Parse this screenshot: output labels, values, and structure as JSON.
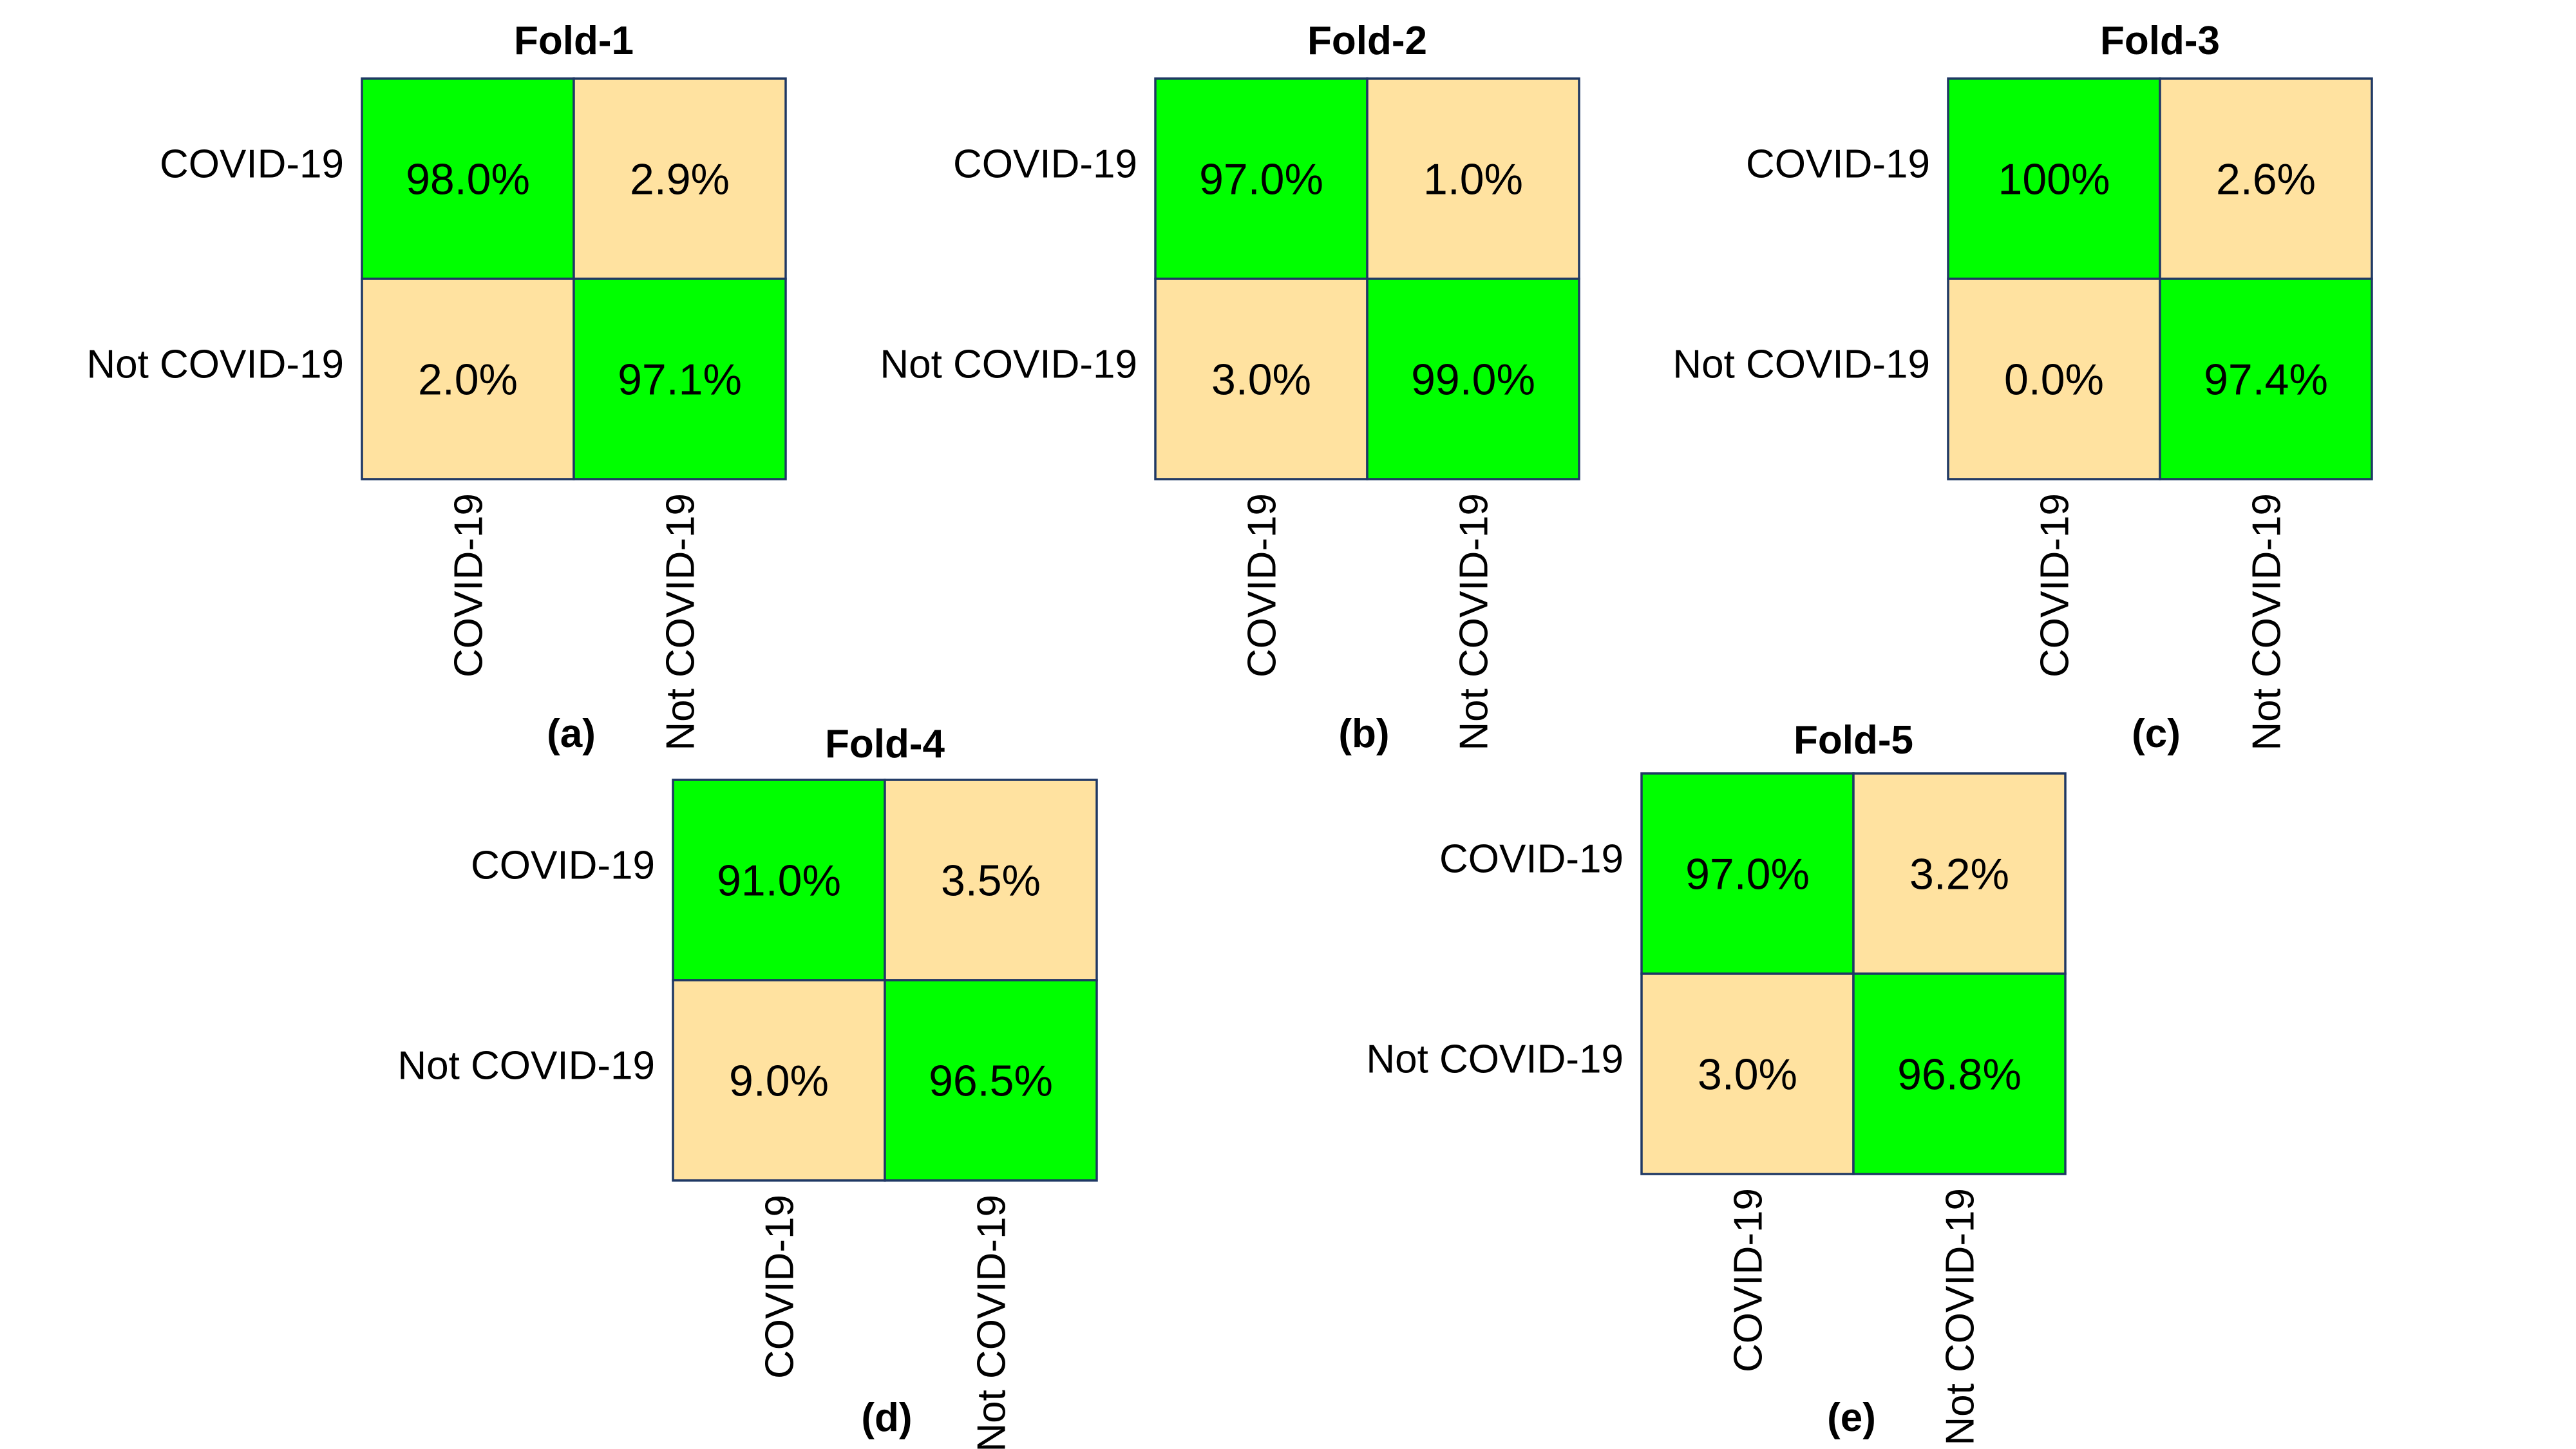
{
  "colors": {
    "diagonal": "#00ff00",
    "off_diagonal": "#ffe2a0",
    "border": "#1f3864"
  },
  "chart_data": [
    {
      "type": "heatmap",
      "panel": "(a)",
      "title": "Fold-1",
      "row_labels": [
        "COVID-19",
        "Not COVID-19"
      ],
      "col_labels": [
        "COVID-19",
        "Not COVID-19"
      ],
      "values": [
        [
          98.0,
          2.9
        ],
        [
          2.0,
          97.1
        ]
      ],
      "labels": [
        [
          "98.0%",
          "2.9%"
        ],
        [
          "2.0%",
          "97.1%"
        ]
      ]
    },
    {
      "type": "heatmap",
      "panel": "(b)",
      "title": "Fold-2",
      "row_labels": [
        "COVID-19",
        "Not COVID-19"
      ],
      "col_labels": [
        "COVID-19",
        "Not COVID-19"
      ],
      "values": [
        [
          97.0,
          1.0
        ],
        [
          3.0,
          99.0
        ]
      ],
      "labels": [
        [
          "97.0%",
          "1.0%"
        ],
        [
          "3.0%",
          "99.0%"
        ]
      ]
    },
    {
      "type": "heatmap",
      "panel": "(c)",
      "title": "Fold-3",
      "row_labels": [
        "COVID-19",
        "Not COVID-19"
      ],
      "col_labels": [
        "COVID-19",
        "Not COVID-19"
      ],
      "values": [
        [
          100,
          2.6
        ],
        [
          0.0,
          97.4
        ]
      ],
      "labels": [
        [
          "100%",
          "2.6%"
        ],
        [
          "0.0%",
          "97.4%"
        ]
      ]
    },
    {
      "type": "heatmap",
      "panel": "(d)",
      "title": "Fold-4",
      "row_labels": [
        "COVID-19",
        "Not COVID-19"
      ],
      "col_labels": [
        "COVID-19",
        "Not COVID-19"
      ],
      "values": [
        [
          91.0,
          3.5
        ],
        [
          9.0,
          96.5
        ]
      ],
      "labels": [
        [
          "91.0%",
          "3.5%"
        ],
        [
          "9.0%",
          "96.5%"
        ]
      ]
    },
    {
      "type": "heatmap",
      "panel": "(e)",
      "title": "Fold-5",
      "row_labels": [
        "COVID-19",
        "Not COVID-19"
      ],
      "col_labels": [
        "COVID-19",
        "Not COVID-19"
      ],
      "values": [
        [
          97.0,
          3.2
        ],
        [
          3.0,
          96.8
        ]
      ],
      "labels": [
        [
          "97.0%",
          "3.2%"
        ],
        [
          "3.0%",
          "96.8%"
        ]
      ]
    }
  ]
}
